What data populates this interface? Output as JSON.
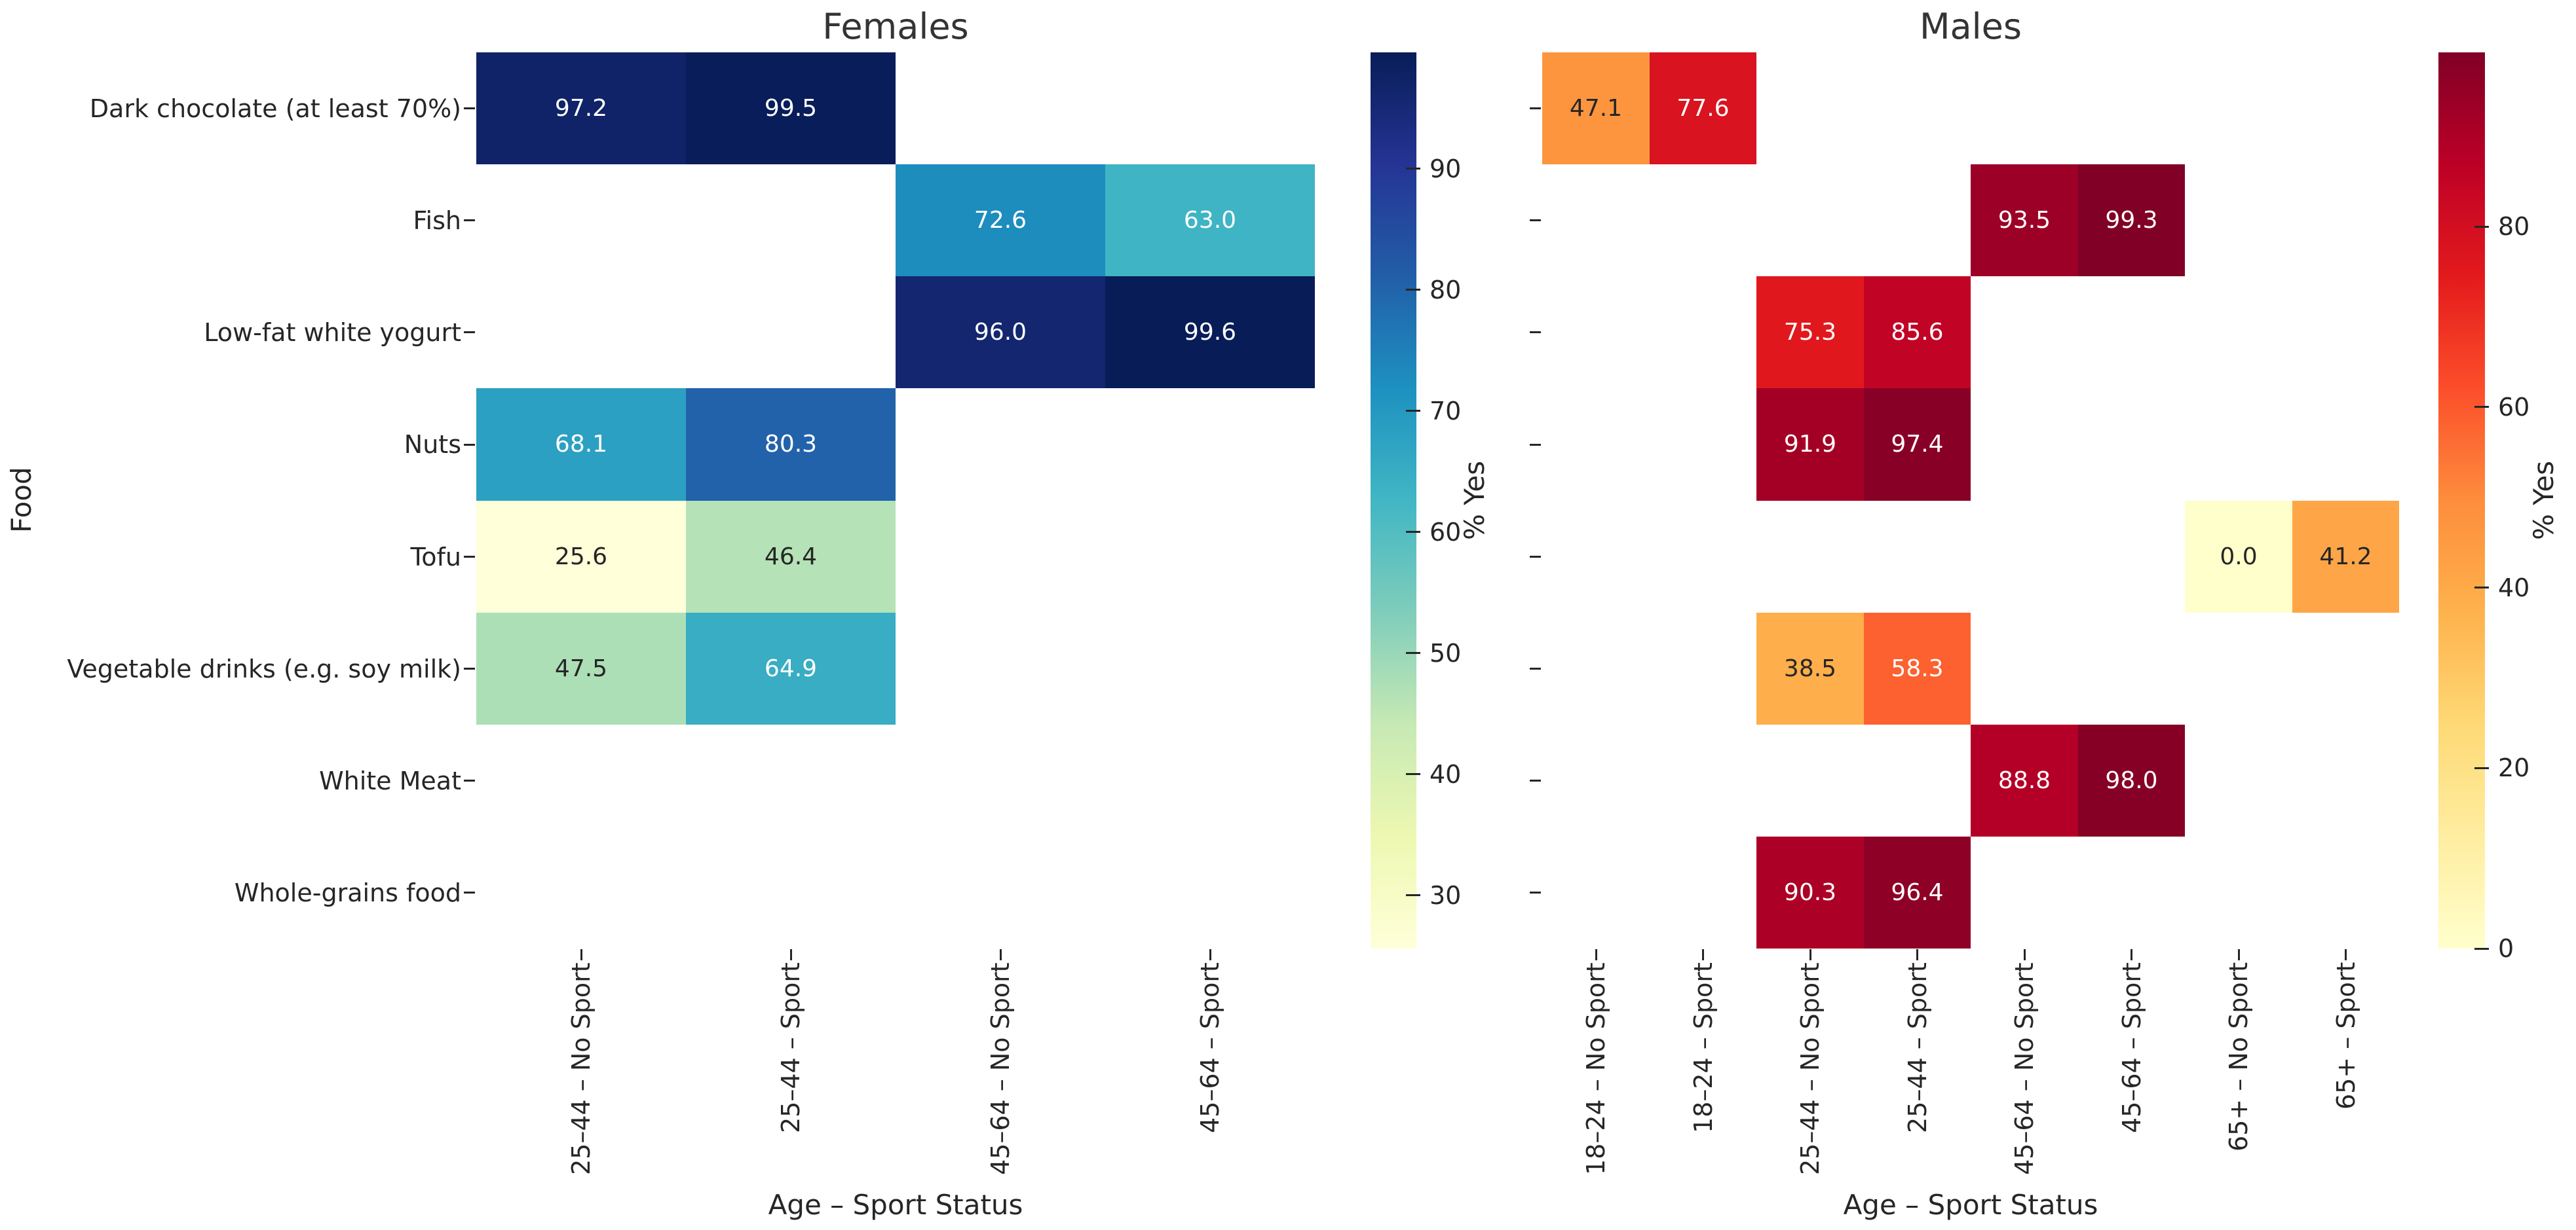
{
  "figure": {
    "background": "#ffffff",
    "text_color": "#262626",
    "title_color": "#343434"
  },
  "chart_data": [
    {
      "type": "heatmap",
      "title": "Females",
      "xlabel": "Age – Sport Status",
      "ylabel": "Food",
      "colorbar_label": "% Yes",
      "colormap_name": "YlGnBu",
      "colormap_anchors": [
        "#ffffd9",
        "#edf8b1",
        "#c7e9b4",
        "#7fcdbb",
        "#41b6c4",
        "#1d91c0",
        "#225ea8",
        "#253494",
        "#081d58"
      ],
      "vmin": 25.6,
      "vmax": 99.6,
      "colorbar_ticks": [
        90,
        80,
        70,
        60,
        50,
        40,
        30
      ],
      "x_categories": [
        "25–44 – No Sport",
        "25–44 – Sport",
        "45–64 – No Sport",
        "45–64 – Sport"
      ],
      "y_categories": [
        "Dark chocolate (at least 70%)",
        "Fish",
        "Low-fat white yogurt",
        "Nuts",
        "Tofu",
        "Vegetable drinks (e.g. soy milk)",
        "White Meat",
        "Whole-grains food"
      ],
      "values": [
        [
          97.2,
          99.5,
          null,
          null
        ],
        [
          null,
          null,
          72.6,
          63.0
        ],
        [
          null,
          null,
          96.0,
          99.6
        ],
        [
          68.1,
          80.3,
          null,
          null
        ],
        [
          25.6,
          46.4,
          null,
          null
        ],
        [
          47.5,
          64.9,
          null,
          null
        ],
        [
          null,
          null,
          null,
          null
        ],
        [
          null,
          null,
          null,
          null
        ]
      ]
    },
    {
      "type": "heatmap",
      "title": "Males",
      "xlabel": "Age – Sport Status",
      "ylabel": "",
      "colorbar_label": "% Yes",
      "colormap_name": "YlOrRd",
      "colormap_anchors": [
        "#ffffcc",
        "#ffeda0",
        "#fed976",
        "#feb24c",
        "#fd8d3c",
        "#fc4e2a",
        "#e31a1c",
        "#bd0026",
        "#800026"
      ],
      "vmin": 0.0,
      "vmax": 99.3,
      "colorbar_ticks": [
        80,
        60,
        40,
        20,
        0
      ],
      "x_categories": [
        "18–24 – No Sport",
        "18–24 – Sport",
        "25–44 – No Sport",
        "25–44 – Sport",
        "45–64 – No Sport",
        "45–64 – Sport",
        "65+ – No Sport",
        "65+ – Sport"
      ],
      "y_categories": [
        "Dark chocolate (at least 70%)",
        "Fish",
        "Low-fat white yogurt",
        "Nuts",
        "Tofu",
        "Vegetable drinks (e.g. soy milk)",
        "White Meat",
        "Whole-grains food"
      ],
      "values": [
        [
          47.1,
          77.6,
          null,
          null,
          null,
          null,
          null,
          null
        ],
        [
          null,
          null,
          null,
          null,
          93.5,
          99.3,
          null,
          null
        ],
        [
          null,
          null,
          75.3,
          85.6,
          null,
          null,
          null,
          null
        ],
        [
          null,
          null,
          91.9,
          97.4,
          null,
          null,
          null,
          null
        ],
        [
          null,
          null,
          null,
          null,
          null,
          null,
          0.0,
          41.2
        ],
        [
          null,
          null,
          38.5,
          58.3,
          null,
          null,
          null,
          null
        ],
        [
          null,
          null,
          null,
          null,
          88.8,
          98.0,
          null,
          null
        ],
        [
          null,
          null,
          90.3,
          96.4,
          null,
          null,
          null,
          null
        ]
      ]
    }
  ]
}
